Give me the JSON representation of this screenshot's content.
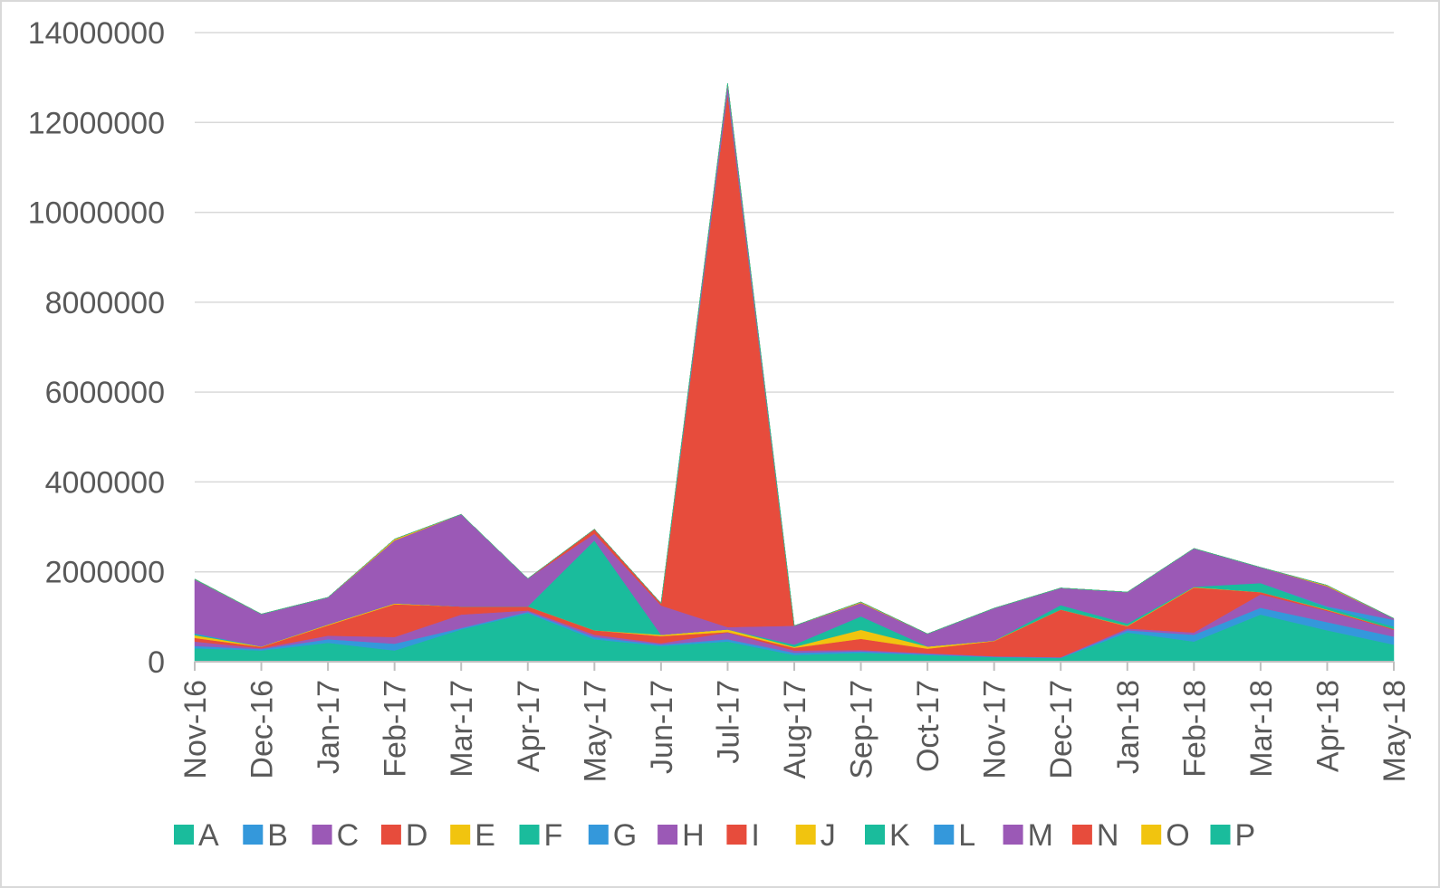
{
  "chart_data": {
    "type": "area",
    "stacked": true,
    "title": "",
    "xlabel": "",
    "ylabel": "",
    "ylim": [
      0,
      14000000
    ],
    "y_ticks": [
      "0",
      "2000000",
      "4000000",
      "6000000",
      "8000000",
      "10000000",
      "12000000",
      "14000000"
    ],
    "grid": true,
    "legend_position": "bottom",
    "categories": [
      "Nov-16",
      "Dec-16",
      "Jan-17",
      "Feb-17",
      "Mar-17",
      "Apr-17",
      "May-17",
      "Jun-17",
      "Jul-17",
      "Aug-17",
      "Sep-17",
      "Oct-17",
      "Nov-17",
      "Dec-17",
      "Jan-18",
      "Feb-18",
      "Mar-18",
      "Apr-18",
      "May-18"
    ],
    "series": [
      {
        "name": "A",
        "color": "#1abc9c",
        "values": [
          300000,
          250000,
          420000,
          250000,
          720000,
          1080000,
          500000,
          350000,
          450000,
          150000,
          200000,
          150000,
          100000,
          80000,
          650000,
          450000,
          1050000,
          700000,
          380000
        ]
      },
      {
        "name": "B",
        "color": "#3498db",
        "values": [
          50000,
          30000,
          80000,
          150000,
          30000,
          30000,
          50000,
          30000,
          50000,
          50000,
          30000,
          20000,
          10000,
          10000,
          50000,
          150000,
          150000,
          180000,
          180000
        ]
      },
      {
        "name": "C",
        "color": "#9b59b6",
        "values": [
          100000,
          20000,
          80000,
          150000,
          300000,
          30000,
          50000,
          30000,
          150000,
          50000,
          30000,
          20000,
          10000,
          10000,
          40000,
          50000,
          300000,
          250000,
          150000
        ]
      },
      {
        "name": "D",
        "color": "#e74c3c",
        "values": [
          80000,
          30000,
          230000,
          730000,
          180000,
          90000,
          100000,
          160000,
          10000,
          60000,
          250000,
          100000,
          340000,
          1060000,
          50000,
          1000000,
          50000,
          20000,
          20000
        ]
      },
      {
        "name": "E",
        "color": "#f1c40f",
        "values": [
          60000,
          10000,
          20000,
          20000,
          0,
          0,
          0,
          30000,
          60000,
          20000,
          200000,
          50000,
          10000,
          0,
          10000,
          10000,
          0,
          10000,
          0
        ]
      },
      {
        "name": "F",
        "color": "#1abc9c",
        "values": [
          20000,
          0,
          0,
          0,
          0,
          0,
          2000000,
          0,
          0,
          50000,
          300000,
          0,
          0,
          100000,
          50000,
          10000,
          200000,
          50000,
          50000
        ]
      },
      {
        "name": "G",
        "color": "#3498db",
        "values": [
          20000,
          0,
          0,
          0,
          0,
          0,
          0,
          0,
          0,
          0,
          0,
          0,
          0,
          0,
          0,
          0,
          0,
          20000,
          150000
        ]
      },
      {
        "name": "H",
        "color": "#9b59b6",
        "values": [
          1200000,
          720000,
          600000,
          1400000,
          2050000,
          620000,
          150000,
          650000,
          50000,
          420000,
          300000,
          280000,
          720000,
          380000,
          700000,
          850000,
          350000,
          450000,
          30000
        ]
      },
      {
        "name": "I",
        "color": "#e74c3c",
        "values": [
          0,
          0,
          0,
          0,
          0,
          0,
          100000,
          50000,
          11900000,
          0,
          0,
          0,
          0,
          0,
          0,
          0,
          0,
          0,
          0
        ]
      },
      {
        "name": "J",
        "color": "#f1c40f",
        "values": [
          0,
          0,
          0,
          30000,
          0,
          0,
          0,
          0,
          0,
          0,
          20000,
          0,
          0,
          0,
          0,
          0,
          0,
          20000,
          0
        ]
      },
      {
        "name": "K",
        "color": "#1abc9c",
        "values": [
          10000,
          0,
          0,
          0,
          0,
          0,
          0,
          0,
          0,
          0,
          0,
          0,
          0,
          0,
          0,
          0,
          0,
          0,
          0
        ]
      },
      {
        "name": "L",
        "color": "#3498db",
        "values": [
          0,
          0,
          0,
          0,
          0,
          0,
          0,
          0,
          0,
          0,
          0,
          0,
          0,
          0,
          0,
          0,
          0,
          0,
          0
        ]
      },
      {
        "name": "M",
        "color": "#9b59b6",
        "values": [
          0,
          0,
          0,
          0,
          0,
          0,
          0,
          0,
          200000,
          0,
          0,
          0,
          0,
          0,
          0,
          0,
          0,
          0,
          0
        ]
      },
      {
        "name": "N",
        "color": "#e74c3c",
        "values": [
          0,
          0,
          0,
          0,
          0,
          0,
          0,
          0,
          0,
          0,
          0,
          0,
          0,
          0,
          0,
          0,
          0,
          0,
          0
        ]
      },
      {
        "name": "O",
        "color": "#f1c40f",
        "values": [
          0,
          0,
          0,
          0,
          0,
          0,
          0,
          0,
          0,
          0,
          0,
          0,
          0,
          0,
          0,
          0,
          0,
          0,
          0
        ]
      },
      {
        "name": "P",
        "color": "#1abc9c",
        "values": [
          0,
          0,
          0,
          0,
          0,
          0,
          0,
          0,
          0,
          0,
          0,
          0,
          0,
          0,
          0,
          0,
          0,
          0,
          0
        ]
      }
    ]
  }
}
